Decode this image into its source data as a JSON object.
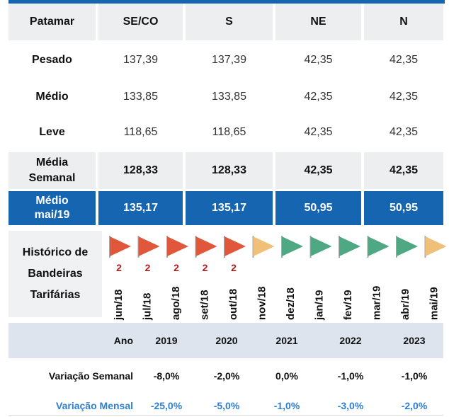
{
  "table": {
    "header": [
      "Patamar",
      "SE/CO",
      "S",
      "NE",
      "N"
    ],
    "rows": [
      [
        "Pesado",
        "137,39",
        "137,39",
        "42,35",
        "42,35"
      ],
      [
        "Médio",
        "133,85",
        "133,85",
        "42,35",
        "42,35"
      ],
      [
        "Leve",
        "118,65",
        "118,65",
        "42,35",
        "42,35"
      ],
      [
        "Média Semanal",
        "128,33",
        "128,33",
        "42,35",
        "42,35"
      ],
      [
        "Médio mai/19",
        "135,17",
        "135,17",
        "50,95",
        "50,95"
      ]
    ]
  },
  "flags": {
    "title": "Histórico de Bandeiras Tarifárias",
    "items": [
      {
        "label": "jun/18",
        "color": "#e0573c",
        "level": "2"
      },
      {
        "label": "jul/18",
        "color": "#e0573c",
        "level": "2"
      },
      {
        "label": "ago/18",
        "color": "#e0573c",
        "level": "2"
      },
      {
        "label": "set/18",
        "color": "#e0573c",
        "level": "2"
      },
      {
        "label": "out/18",
        "color": "#e0573c",
        "level": "2"
      },
      {
        "label": "nov/18",
        "color": "#f0c078"
      },
      {
        "label": "dez/18",
        "color": "#4ea883"
      },
      {
        "label": "jan/19",
        "color": "#4ea883"
      },
      {
        "label": "fev/19",
        "color": "#4ea883"
      },
      {
        "label": "mar/19",
        "color": "#4ea883"
      },
      {
        "label": "abr/19",
        "color": "#4ea883"
      },
      {
        "label": "mai/19",
        "color": "#f0c078"
      }
    ]
  },
  "variation": {
    "header": [
      "Ano",
      "2019",
      "2020",
      "2021",
      "2022",
      "2023"
    ],
    "rows": [
      [
        "Variação Semanal",
        "-8,0%",
        "-2,0%",
        "0,0%",
        "-1,0%",
        "-1,0%"
      ],
      [
        "Variação Mensal",
        "-25,0%",
        "-5,0%",
        "-1,0%",
        "-3,0%",
        "-2,0%"
      ]
    ]
  }
}
